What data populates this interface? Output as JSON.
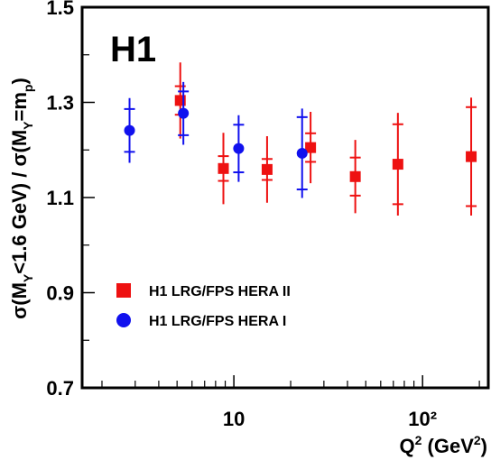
{
  "chart_data": {
    "type": "scatter",
    "annotation": "H1",
    "xscale": "log",
    "xlim": [
      1.57,
      223
    ],
    "ylim": [
      0.7,
      1.5
    ],
    "xticks": [
      10,
      {
        "value": 100,
        "label": "10²"
      }
    ],
    "xminor_ticks": [
      2,
      3,
      4,
      5,
      6,
      7,
      8,
      9,
      20,
      30,
      40,
      50,
      60,
      70,
      80,
      90,
      200
    ],
    "yticks": [
      0.7,
      0.9,
      1.1,
      1.3,
      1.5
    ],
    "yminor_ticks": [
      0.8,
      1.0,
      1.2,
      1.4
    ],
    "xlabel": [
      {
        "text": "Q"
      },
      {
        "text": "2",
        "sup": true
      },
      {
        "text": " (GeV"
      },
      {
        "text": "2",
        "sup": true
      },
      {
        "text": ")"
      }
    ],
    "ylabel": [
      {
        "text": "σ(M"
      },
      {
        "text": "Y",
        "sub": true
      },
      {
        "text": "<1.6 GeV) / σ(M"
      },
      {
        "text": "Y",
        "sub": true
      },
      {
        "text": "=m"
      },
      {
        "text": "p",
        "sub": true
      },
      {
        "text": ")"
      }
    ],
    "legend": "lower left",
    "series": [
      {
        "name": "H1 LRG/FPS HERA II",
        "color": "#ee1111",
        "marker": "square",
        "x": [
          5.2,
          8.8,
          15,
          25.5,
          44,
          74,
          181
        ],
        "values": [
          1.304,
          1.161,
          1.159,
          1.205,
          1.144,
          1.17,
          1.186
        ],
        "stat_errors": [
          0.03,
          0.026,
          0.022,
          0.03,
          0.04,
          0.084,
          0.104
        ],
        "total_errors": [
          0.08,
          0.075,
          0.07,
          0.075,
          0.077,
          0.108,
          0.124
        ]
      },
      {
        "name": "H1 LRG/FPS HERA I",
        "color": "#1111ee",
        "marker": "circle",
        "x": [
          2.8,
          5.4,
          10.6,
          23
        ],
        "values": [
          1.241,
          1.277,
          1.203,
          1.193
        ],
        "stat_errors": [
          0.045,
          0.046,
          0.05,
          0.076
        ],
        "total_errors": [
          0.068,
          0.066,
          0.07,
          0.094
        ]
      }
    ]
  }
}
